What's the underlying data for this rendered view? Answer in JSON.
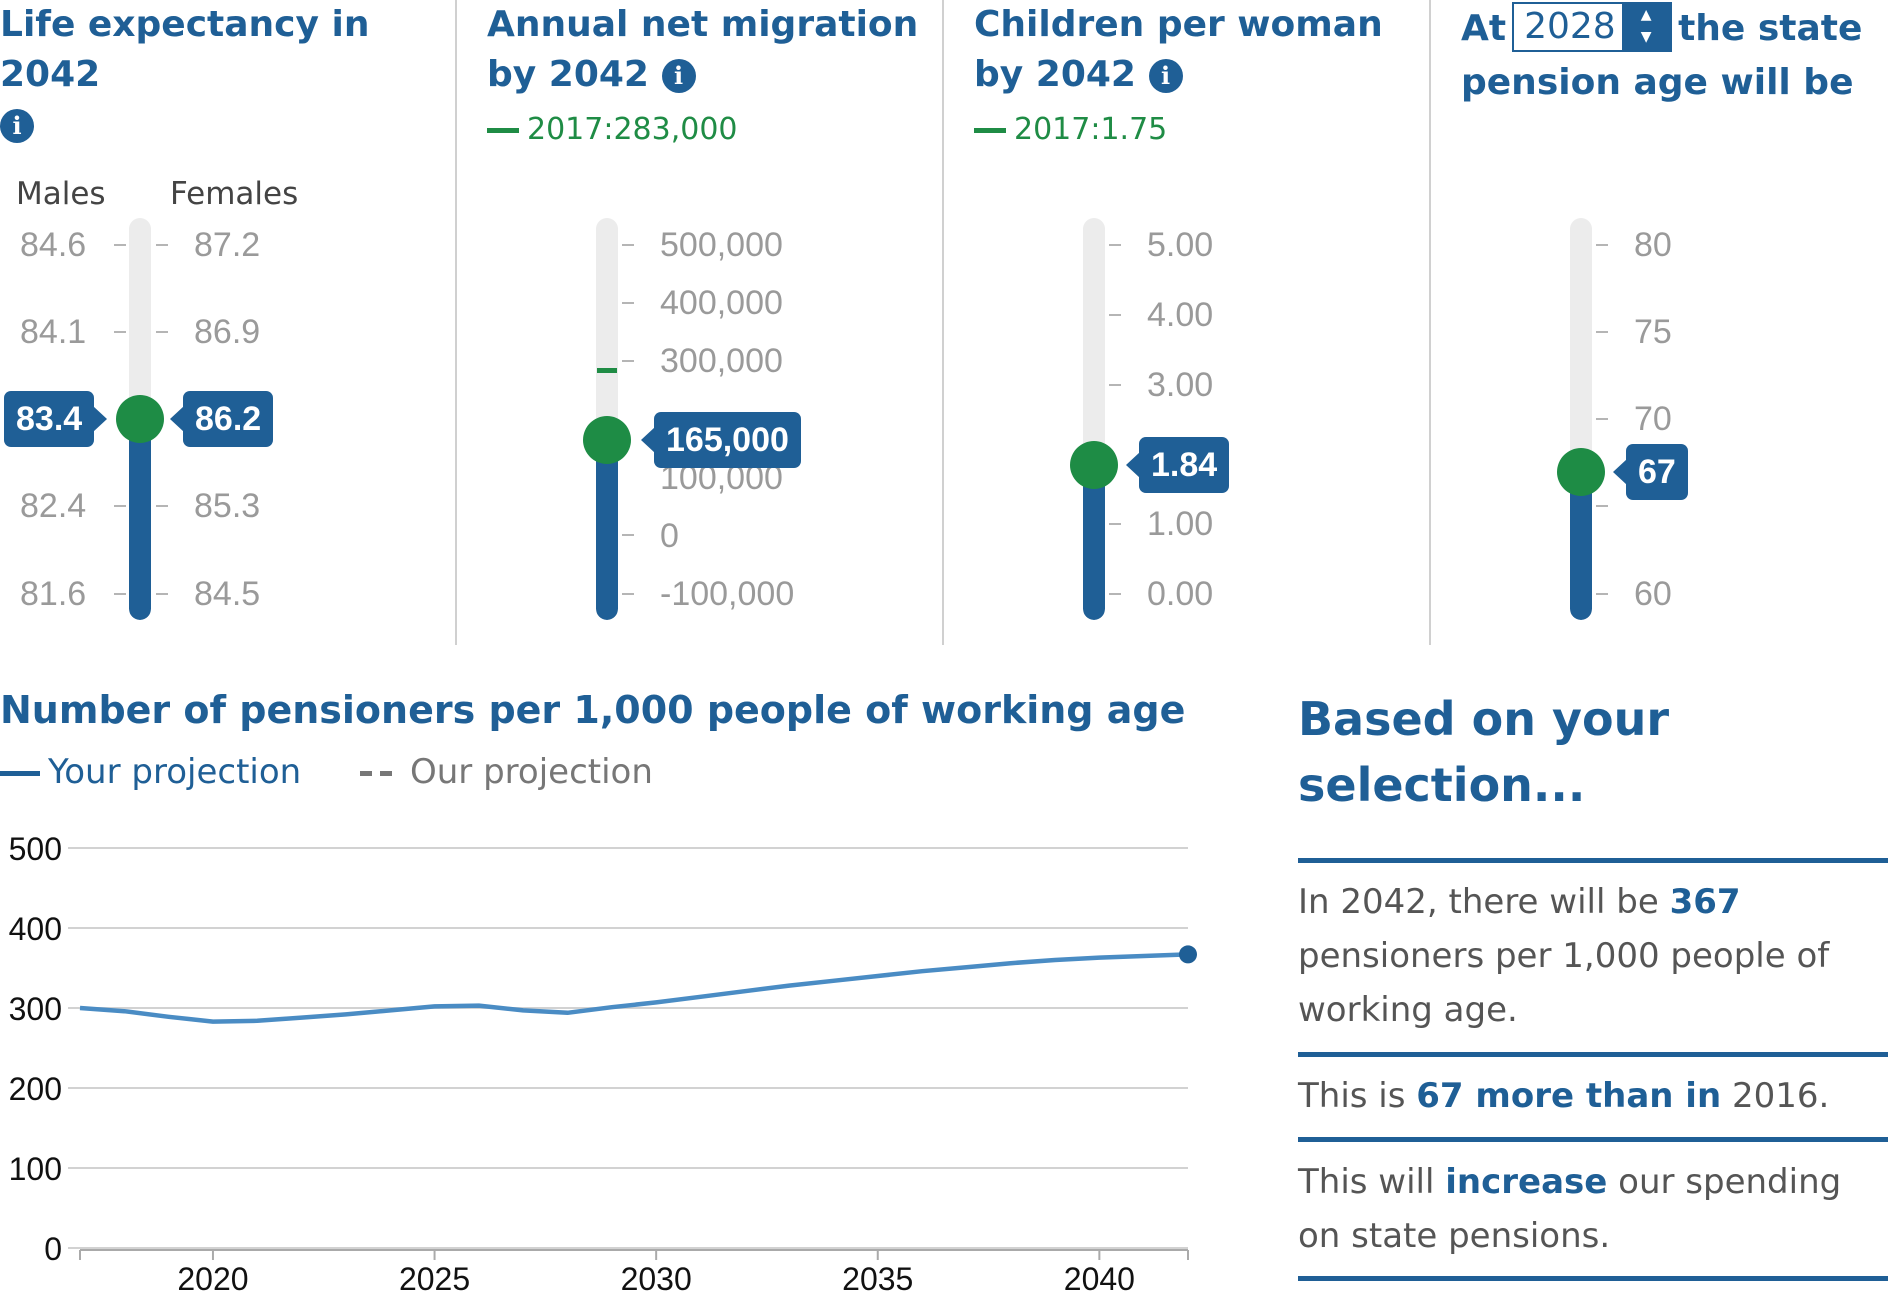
{
  "panels": {
    "life": {
      "title": "Life expectancy in 2042",
      "males_label": "Males",
      "females_label": "Females",
      "male_ticks": [
        "84.6",
        "84.1",
        "83.4",
        "82.4",
        "81.6"
      ],
      "female_ticks": [
        "87.2",
        "86.9",
        "86.2",
        "85.3",
        "84.5"
      ],
      "male_value": "83.4",
      "female_value": "86.2"
    },
    "migration": {
      "title": "Annual net migration by 2042",
      "ref2017": "2017:283,000",
      "ticks": [
        "500,000",
        "400,000",
        "300,000",
        "200,000",
        "100,000",
        "0",
        "-100,000"
      ],
      "value": "165,000"
    },
    "fertility": {
      "title": "Children per woman by 2042",
      "ref2017": "2017:1.75",
      "ticks": [
        "5.00",
        "4.00",
        "3.00",
        "2.00",
        "1.00",
        "0.00"
      ],
      "value": "1.84"
    },
    "pension": {
      "title_pre": "At",
      "year": "2028",
      "title_post": "the state pension age will be",
      "ticks": [
        "80",
        "75",
        "70",
        "65",
        "60"
      ],
      "value": "67"
    }
  },
  "colors": {
    "primary": "#1f5f96",
    "knob": "#1e8c45",
    "reference": "#1f8c45",
    "line": "#4a8cc4"
  },
  "chart_data": {
    "type": "line",
    "title": "Number of pensioners per 1,000 people of working age",
    "legend": [
      "Your projection",
      "Our projection"
    ],
    "ylim": [
      0,
      500
    ],
    "y_ticks": [
      "0",
      "100",
      "200",
      "300",
      "400",
      "500"
    ],
    "x_ticks": [
      "2020",
      "2025",
      "2030",
      "2035",
      "2040"
    ],
    "xlim": [
      2017,
      2042
    ],
    "series": [
      {
        "name": "Your projection",
        "x": [
          2017,
          2018,
          2019,
          2020,
          2021,
          2022,
          2023,
          2024,
          2025,
          2026,
          2027,
          2028,
          2029,
          2030,
          2031,
          2032,
          2033,
          2034,
          2035,
          2036,
          2037,
          2038,
          2039,
          2040,
          2041,
          2042
        ],
        "y": [
          300,
          296,
          289,
          283,
          284,
          288,
          292,
          297,
          302,
          303,
          297,
          294,
          301,
          307,
          314,
          321,
          328,
          334,
          340,
          346,
          351,
          356,
          360,
          363,
          365,
          367
        ]
      }
    ]
  },
  "summary": {
    "title": "Based on your selection...",
    "p1_a": "In 2042, there will be",
    "p1_b": "367",
    "p1_c": "pensioners per 1,000 people of working age.",
    "p2_a": "This is",
    "p2_b": "67 more than in",
    "p2_c": "2016.",
    "p3_a": "This will",
    "p3_b": "increase",
    "p3_c": "our spending on state pensions."
  }
}
